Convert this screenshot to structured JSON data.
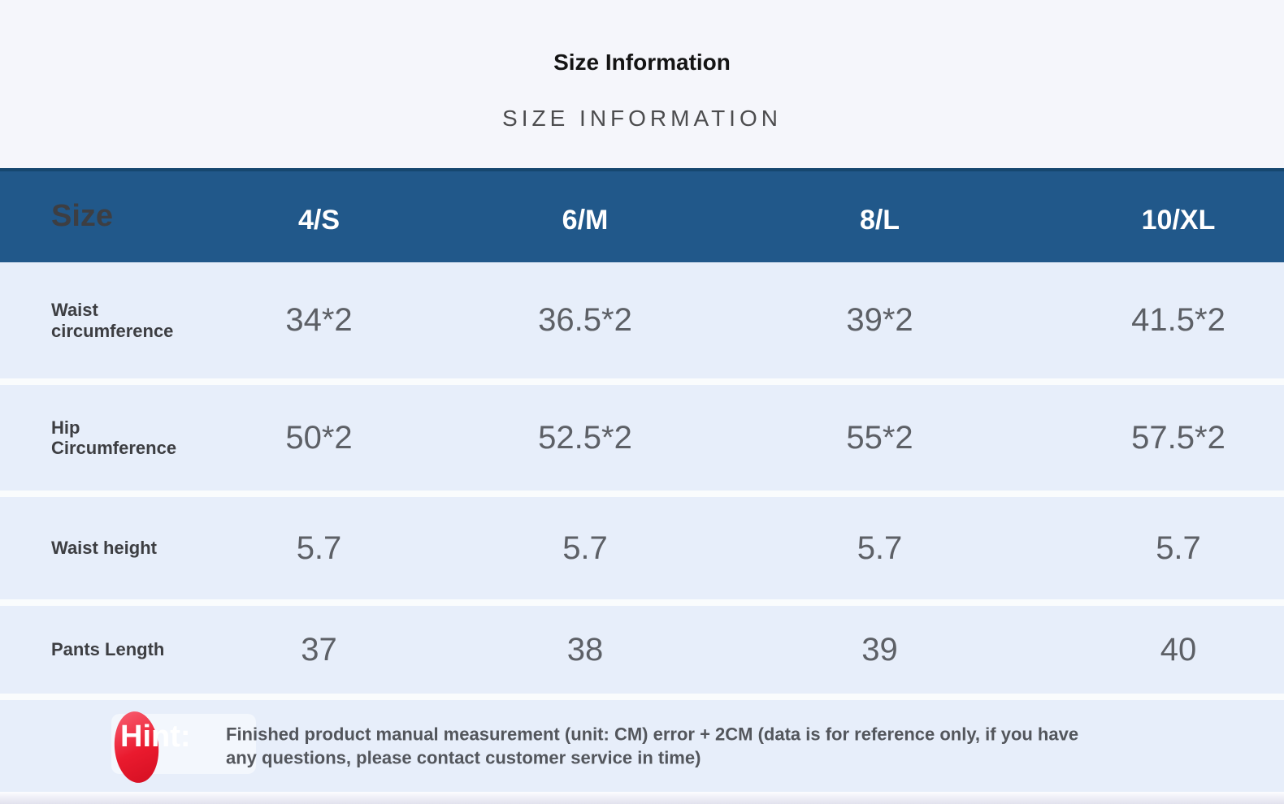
{
  "page": {
    "title": "Size Information",
    "subtitle": "SIZE INFORMATION"
  },
  "table": {
    "header": {
      "label": "Size",
      "columns": [
        "4/S",
        "6/M",
        "8/L",
        "10/XL"
      ]
    },
    "rows": [
      {
        "label": "Waist circumference",
        "values": [
          "34*2",
          "36.5*2",
          "39*2",
          "41.5*2"
        ]
      },
      {
        "label": "Hip Circumference",
        "values": [
          "50*2",
          "52.5*2",
          "55*2",
          "57.5*2"
        ]
      },
      {
        "label": "Waist height",
        "values": [
          "5.7",
          "5.7",
          "5.7",
          "5.7"
        ]
      },
      {
        "label": "Pants Length",
        "values": [
          "37",
          "38",
          "39",
          "40"
        ]
      }
    ]
  },
  "hint": {
    "label": "Hint:",
    "text": "Finished product manual measurement (unit: CM) error + 2CM (data is for reference only, if you have any questions, please contact customer service in time)"
  },
  "chart_data": {
    "type": "table",
    "title": "Size Information",
    "subtitle": "SIZE INFORMATION",
    "columns": [
      "Size",
      "4/S",
      "6/M",
      "8/L",
      "10/XL"
    ],
    "rows": [
      [
        "Waist circumference",
        "34*2",
        "36.5*2",
        "39*2",
        "41.5*2"
      ],
      [
        "Hip Circumference",
        "50*2",
        "52.5*2",
        "55*2",
        "57.5*2"
      ],
      [
        "Waist height",
        "5.7",
        "5.7",
        "5.7",
        "5.7"
      ],
      [
        "Pants Length",
        "37",
        "38",
        "39",
        "40"
      ]
    ],
    "units": "CM",
    "note": "Finished product manual measurement (unit: CM) error + 2CM (data is for reference only, if you have any questions, please contact customer service in time)"
  },
  "colors": {
    "page_bg": "#f5f6fb",
    "header_bg": "#21588a",
    "header_top_line": "#16476f",
    "header_text": "#ffffff",
    "row_bg": "#e7eefa",
    "row_gap": "#fafcfd",
    "label_text": "#3d3e42",
    "value_text": "#5d6066",
    "title_text": "#141414",
    "subtitle_text": "#4c4c4e",
    "hint_text": "#53565c",
    "hint_red": "#ea1a2e",
    "bottom_strip": "#e2e2ee"
  }
}
